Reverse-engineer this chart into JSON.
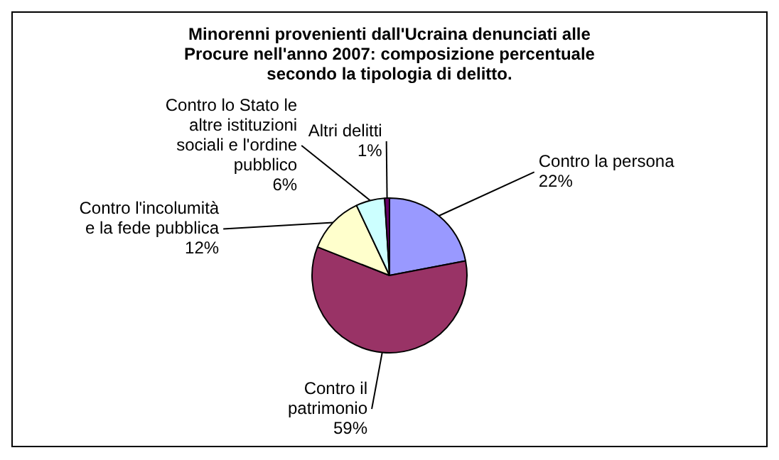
{
  "chart_data": {
    "type": "pie",
    "title": "Minorenni provenienti dall'Ucraina denunciati alle Procure nell'anno 2007: composizione percentuale secondo la tipologia di delitto.",
    "categories": [
      "Contro la persona",
      "Contro il patrimonio",
      "Contro l'incolumità e la fede pubblica",
      "Contro lo Stato le altre istituzioni sociali e l'ordine pubblico",
      "Altri delitti"
    ],
    "values": [
      22,
      59,
      12,
      6,
      1
    ],
    "colors": [
      "#9999ff",
      "#993366",
      "#ffffcc",
      "#ccffff",
      "#660066"
    ],
    "value_labels": [
      "22%",
      "59%",
      "12%",
      "6%",
      "1%"
    ],
    "legend": false
  }
}
